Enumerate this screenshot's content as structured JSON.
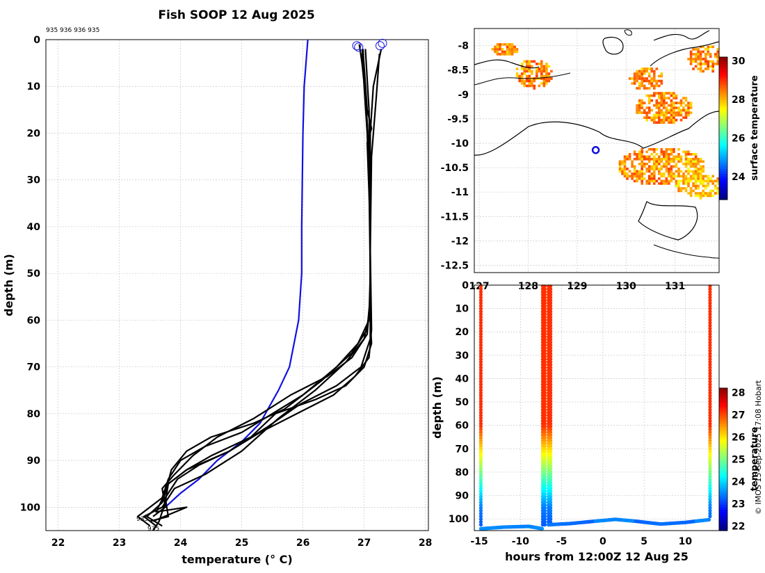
{
  "title": "Fish SOOP 12 Aug 2025",
  "credit": "© IMOS 15-Sep-2025 17:08 Hobart",
  "top_annotation": "935 936 936 935",
  "bottom_labels": [
    "935",
    "935"
  ],
  "chart_data": [
    {
      "type": "line",
      "name": "temperature-depth profiles",
      "xlabel": "temperature (° C)",
      "ylabel": "depth (m)",
      "xlim": [
        21.8,
        28.05
      ],
      "ylim": [
        105,
        0
      ],
      "xticks": [
        22,
        23,
        24,
        25,
        26,
        27,
        28
      ],
      "yticks": [
        0,
        10,
        20,
        30,
        40,
        50,
        60,
        70,
        80,
        90,
        100
      ],
      "climatology": {
        "name": "climatology",
        "color": "#1010e0",
        "points": [
          [
            26.08,
            0
          ],
          [
            26.05,
            5
          ],
          [
            26.02,
            10
          ],
          [
            26.0,
            20
          ],
          [
            25.99,
            30
          ],
          [
            25.98,
            40
          ],
          [
            25.98,
            50
          ],
          [
            25.93,
            60
          ],
          [
            25.78,
            70
          ],
          [
            25.6,
            75
          ],
          [
            25.3,
            82
          ],
          [
            25.0,
            86
          ],
          [
            24.6,
            90
          ],
          [
            24.3,
            94
          ],
          [
            24.0,
            97
          ],
          [
            23.75,
            100
          ]
        ]
      },
      "casts": [
        {
          "name": "cast-1",
          "points": [
            [
              26.97,
              2
            ],
            [
              27.0,
              10
            ],
            [
              27.05,
              20
            ],
            [
              27.08,
              30
            ],
            [
              27.1,
              50
            ],
            [
              27.08,
              60
            ],
            [
              26.9,
              65
            ],
            [
              26.55,
              70
            ],
            [
              26.0,
              76
            ],
            [
              25.5,
              80
            ],
            [
              25.0,
              84
            ],
            [
              24.4,
              87
            ],
            [
              24.0,
              90
            ],
            [
              23.8,
              94
            ],
            [
              23.7,
              98
            ],
            [
              23.3,
              102
            ],
            [
              23.5,
              104
            ]
          ]
        },
        {
          "name": "cast-2",
          "points": [
            [
              26.95,
              3
            ],
            [
              27.02,
              12
            ],
            [
              27.06,
              20
            ],
            [
              27.1,
              35
            ],
            [
              27.1,
              55
            ],
            [
              27.05,
              62
            ],
            [
              26.8,
              67
            ],
            [
              26.3,
              73
            ],
            [
              25.7,
              79
            ],
            [
              25.2,
              82
            ],
            [
              24.5,
              85
            ],
            [
              24.1,
              88
            ],
            [
              23.85,
              92
            ],
            [
              23.75,
              97
            ],
            [
              23.6,
              101
            ],
            [
              24.1,
              100
            ],
            [
              23.55,
              103
            ]
          ]
        },
        {
          "name": "cast-3",
          "points": [
            [
              26.98,
              2
            ],
            [
              27.05,
              15
            ],
            [
              27.12,
              19
            ],
            [
              27.05,
              22
            ],
            [
              27.1,
              40
            ],
            [
              27.1,
              58
            ],
            [
              27.0,
              64
            ],
            [
              26.7,
              69
            ],
            [
              26.2,
              75
            ],
            [
              25.6,
              81
            ],
            [
              25.0,
              88
            ],
            [
              24.4,
              93
            ],
            [
              23.9,
              96
            ],
            [
              23.7,
              100
            ],
            [
              23.4,
              102
            ],
            [
              23.6,
              104
            ]
          ]
        },
        {
          "name": "cast-4",
          "points": [
            [
              27.28,
              2
            ],
            [
              27.15,
              10
            ],
            [
              27.1,
              20
            ],
            [
              27.1,
              40
            ],
            [
              27.1,
              60
            ],
            [
              27.12,
              65
            ],
            [
              27.0,
              70
            ],
            [
              26.7,
              74
            ],
            [
              26.2,
              77
            ],
            [
              25.55,
              80
            ],
            [
              25.15,
              85
            ],
            [
              24.5,
              89
            ],
            [
              24.1,
              92
            ],
            [
              23.8,
              95
            ],
            [
              23.75,
              99
            ],
            [
              23.65,
              103
            ],
            [
              23.55,
              105
            ]
          ]
        },
        {
          "name": "cast-5",
          "points": [
            [
              27.25,
              3
            ],
            [
              27.2,
              12
            ],
            [
              27.12,
              25
            ],
            [
              27.1,
              45
            ],
            [
              27.12,
              62
            ],
            [
              27.08,
              68
            ],
            [
              26.85,
              72
            ],
            [
              26.5,
              76
            ],
            [
              25.9,
              80
            ],
            [
              25.3,
              84
            ],
            [
              24.8,
              88
            ],
            [
              24.3,
              91
            ],
            [
              23.95,
              94
            ],
            [
              23.75,
              98
            ],
            [
              23.8,
              102
            ],
            [
              23.5,
              103
            ]
          ]
        },
        {
          "name": "cast-6",
          "points": [
            [
              26.92,
              1
            ],
            [
              27.0,
              8
            ],
            [
              27.05,
              18
            ],
            [
              27.1,
              30
            ],
            [
              27.1,
              55
            ],
            [
              27.05,
              63
            ],
            [
              26.8,
              68
            ],
            [
              26.4,
              72
            ],
            [
              25.8,
              76
            ],
            [
              25.2,
              81
            ],
            [
              24.6,
              85
            ],
            [
              24.2,
              89
            ],
            [
              23.9,
              93
            ],
            [
              23.7,
              96
            ],
            [
              23.75,
              100
            ],
            [
              23.55,
              102
            ]
          ]
        },
        {
          "name": "cast-7",
          "points": [
            [
              27.02,
              2
            ],
            [
              27.08,
              15
            ],
            [
              27.1,
              30
            ],
            [
              27.1,
              58
            ],
            [
              27.1,
              64
            ],
            [
              26.95,
              70
            ],
            [
              26.55,
              74
            ],
            [
              25.95,
              78
            ],
            [
              25.4,
              83
            ],
            [
              24.8,
              88
            ],
            [
              24.1,
              92
            ],
            [
              23.8,
              95
            ],
            [
              23.7,
              99
            ],
            [
              23.45,
              102
            ],
            [
              23.7,
              104
            ]
          ]
        }
      ],
      "start_markers": [
        [
          26.88,
          1.3
        ],
        [
          26.91,
          1.6
        ],
        [
          27.26,
          1.3
        ],
        [
          27.3,
          0.8
        ]
      ]
    },
    {
      "type": "heatmap",
      "name": "satellite sea surface temperature",
      "colorbar_label": "surface temperature",
      "colorbar_range": [
        22.8,
        30.2
      ],
      "colorbar_ticks": [
        24,
        26,
        28,
        30
      ],
      "xlim": [
        126.9,
        131.9
      ],
      "ylim": [
        -12.65,
        -7.65
      ],
      "xticks": [
        127,
        128,
        129,
        130,
        131
      ],
      "xticklabels": [
        "127",
        "128",
        "129",
        "130",
        "131"
      ],
      "yticks": [
        -8,
        -8.5,
        -9,
        -9.5,
        -10,
        -10.5,
        -11,
        -11.5,
        -12,
        -12.5
      ],
      "yticklabels": [
        "-8",
        "-8.5",
        "-9",
        "-9.5",
        "-10",
        "-10.5",
        "-11",
        "-11.5",
        "-12",
        "-12.5"
      ],
      "cast_location": [
        129.38,
        -10.14
      ]
    },
    {
      "type": "scatter",
      "name": "depth-time section",
      "xlabel": "hours from 12:00Z 12 Aug 25",
      "ylabel": "depth (m)",
      "colorbar_label": "temperature",
      "colorbar_range": [
        21.8,
        28.2
      ],
      "colorbar_ticks": [
        22,
        23,
        24,
        25,
        26,
        27,
        28
      ],
      "xlim": [
        -15.6,
        14.1
      ],
      "ylim": [
        105,
        0
      ],
      "xticks": [
        -15,
        -10,
        -5,
        0,
        5,
        10
      ],
      "xticklabels": [
        "-15",
        "-10",
        "-5",
        "0",
        "5",
        "10"
      ],
      "yticks": [
        0,
        10,
        20,
        30,
        40,
        50,
        60,
        70,
        80,
        90,
        100
      ],
      "yticklabels": [
        "0",
        "10",
        "20",
        "30",
        "40",
        "50",
        "60",
        "70",
        "80",
        "90",
        "100"
      ],
      "casts_hours": [
        -14.8,
        -7.3,
        -6.6,
        13.0
      ],
      "bottom_track": [
        [
          -14.8,
          104.2
        ],
        [
          -12,
          103.5
        ],
        [
          -9,
          103.2
        ],
        [
          -7.3,
          104.2
        ],
        [
          -6.6,
          102.5
        ],
        [
          -4,
          102
        ],
        [
          -1,
          101
        ],
        [
          1.5,
          100.2
        ],
        [
          4,
          101
        ],
        [
          7,
          102.2
        ],
        [
          10,
          101.5
        ],
        [
          13,
          100.3
        ]
      ]
    }
  ]
}
